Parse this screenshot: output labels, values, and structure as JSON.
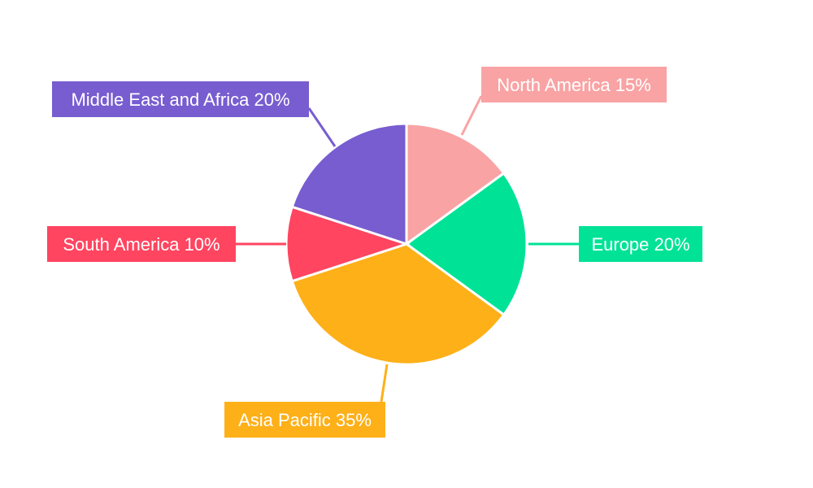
{
  "chart_data": {
    "type": "pie",
    "title": "",
    "start_angle": "top, clockwise",
    "slices": [
      {
        "label": "North America",
        "value": 15,
        "text": "North America 15%",
        "color": "#F9A3A4"
      },
      {
        "label": "Europe",
        "value": 20,
        "text": "Europe 20%",
        "color": "#00E396"
      },
      {
        "label": "Asia Pacific",
        "value": 35,
        "text": "Asia Pacific 35%",
        "color": "#FEB019"
      },
      {
        "label": "South America",
        "value": 10,
        "text": "South America 10%",
        "color": "#FF4560"
      },
      {
        "label": "Middle East and Africa",
        "value": 20,
        "text": "Middle East and Africa 20%",
        "color": "#775DD0"
      }
    ]
  }
}
